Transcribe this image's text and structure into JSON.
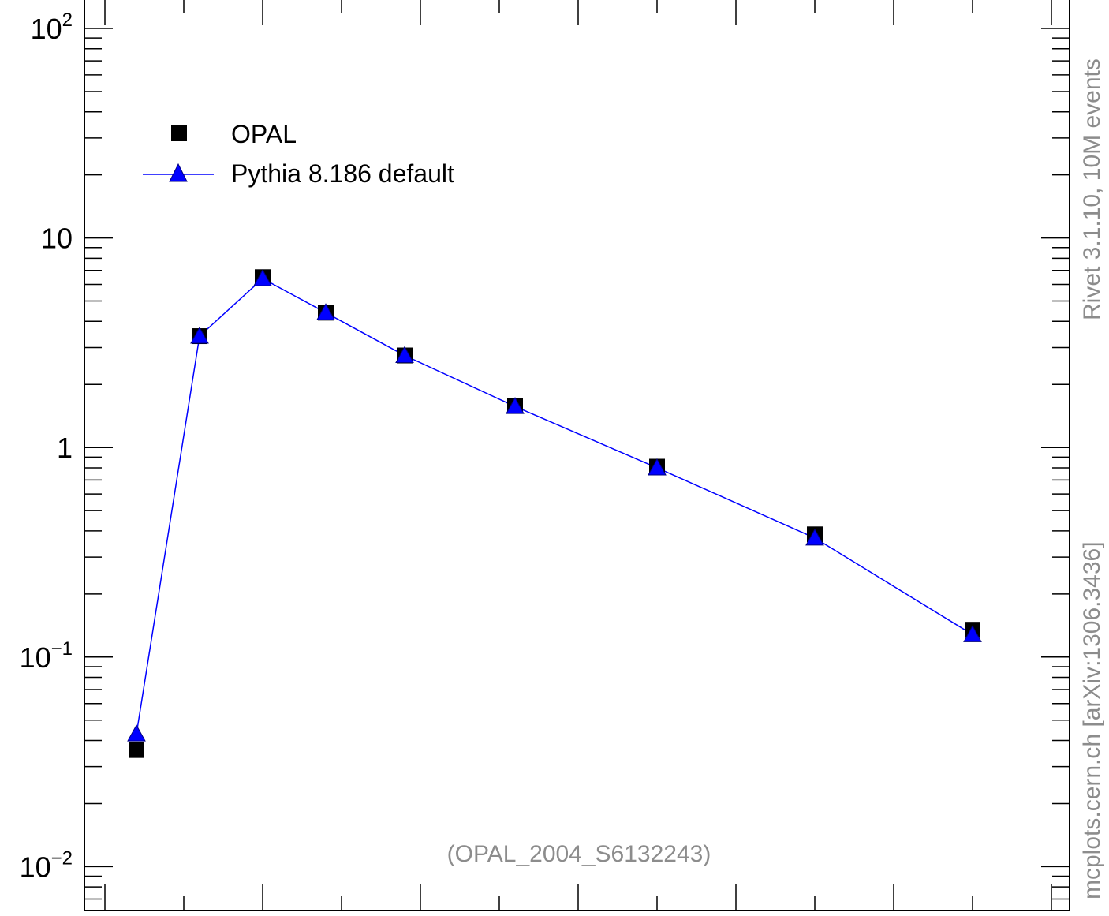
{
  "chart_data": {
    "type": "scatter",
    "yscale": "log",
    "ylim": [
      0.007,
      150
    ],
    "xlim": [
      0.0,
      6.0
    ],
    "y_ticks": [
      {
        "value": 100,
        "label": "10",
        "sup": "2"
      },
      {
        "value": 10,
        "label": "10",
        "sup": ""
      },
      {
        "value": 1,
        "label": "1",
        "sup": ""
      },
      {
        "value": 0.1,
        "label": "10",
        "sup": "−1"
      },
      {
        "value": 0.01,
        "label": "10",
        "sup": "−2"
      }
    ],
    "series": [
      {
        "name": "OPAL",
        "marker": "square",
        "color": "#000000",
        "x": [
          0.2,
          0.6,
          1.0,
          1.4,
          1.9,
          2.6,
          3.5,
          4.5,
          5.5
        ],
        "y": [
          0.036,
          3.4,
          6.5,
          4.4,
          2.75,
          1.58,
          0.81,
          0.385,
          0.135
        ]
      },
      {
        "name": "Pythia 8.186 default",
        "marker": "triangle",
        "color": "#0000ff",
        "line": true,
        "x": [
          0.2,
          0.6,
          1.0,
          1.4,
          1.9,
          2.6,
          3.5,
          4.5,
          5.5
        ],
        "y": [
          0.043,
          3.4,
          6.4,
          4.4,
          2.75,
          1.57,
          0.8,
          0.37,
          0.128
        ]
      }
    ],
    "legend_position": "top-left",
    "annotation": "(OPAL_2004_S6132243)",
    "side_label_top": "Rivet 3.1.10,  10M events",
    "side_label_bottom": "mcplots.cern.ch [arXiv:1306.3436]"
  }
}
